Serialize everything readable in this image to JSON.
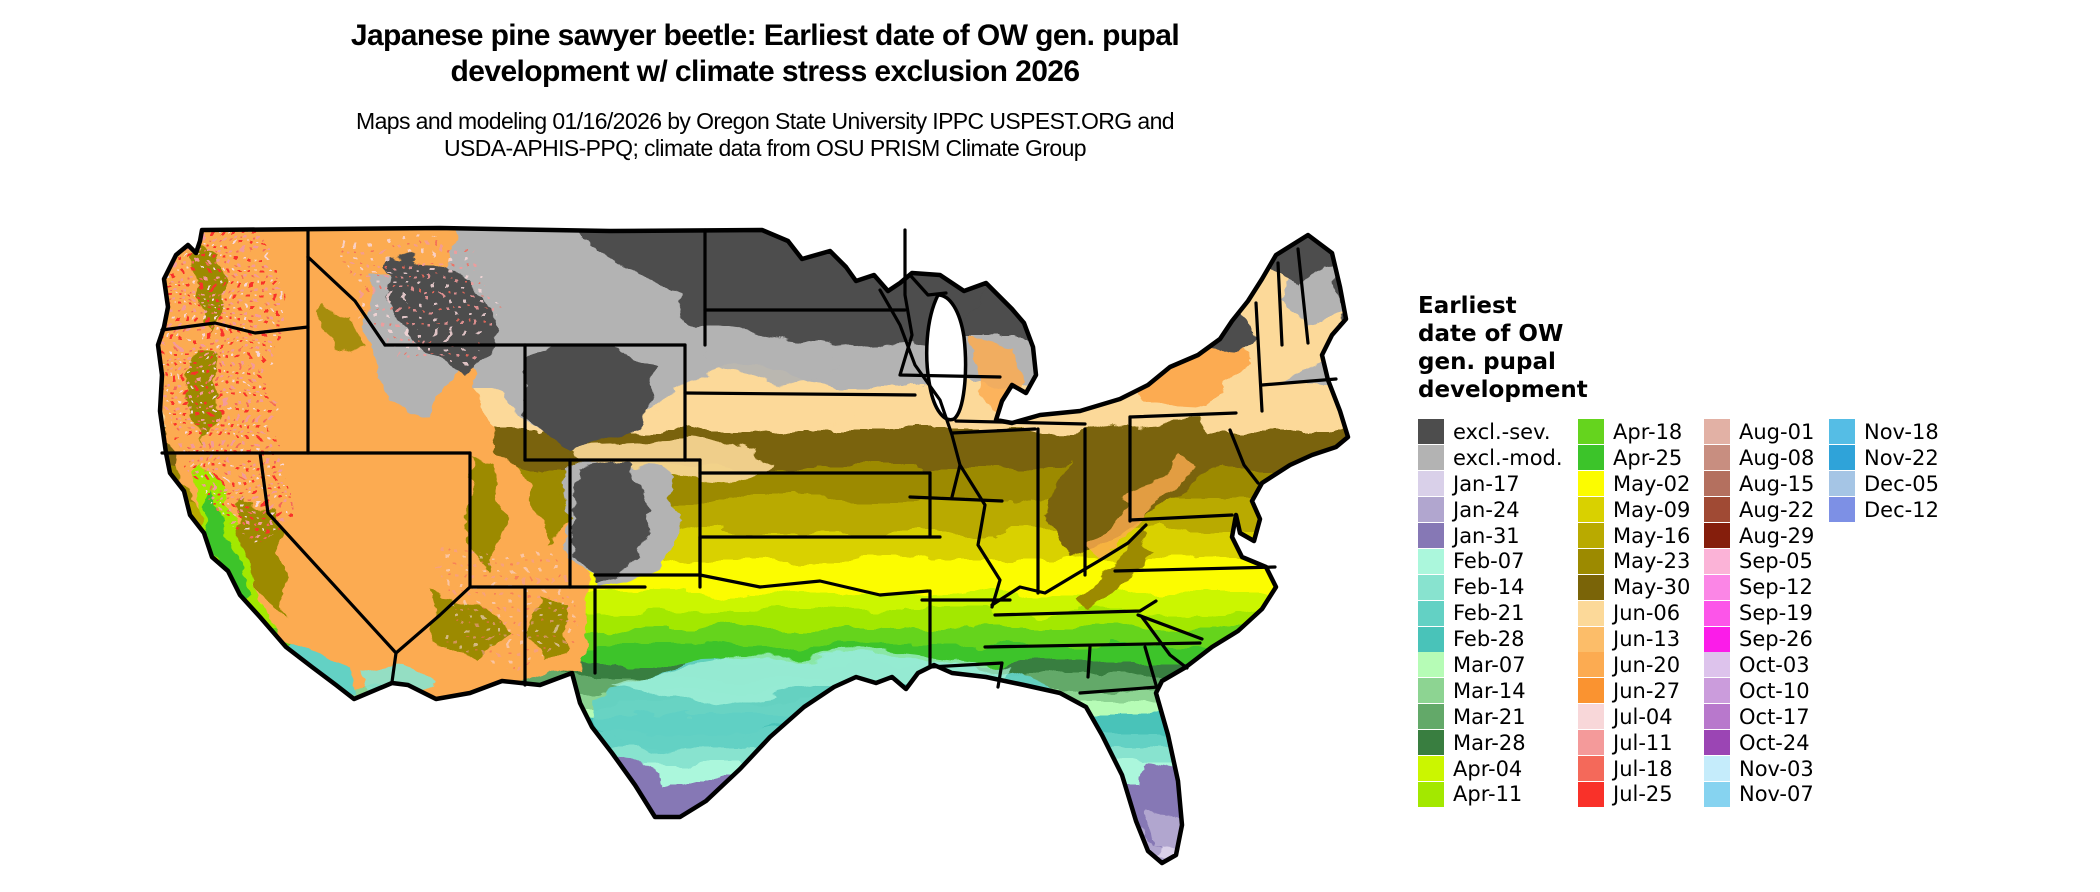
{
  "title": {
    "line1": "Japanese pine sawyer beetle: Earliest date of OW gen. pupal",
    "line2": "development w/ climate stress exclusion 2026"
  },
  "subtitle": {
    "line1": "Maps and modeling 01/16/2026 by Oregon State University IPPC USPEST.ORG and",
    "line2": "USDA-APHIS-PPQ; climate data from OSU PRISM Climate Group"
  },
  "legend": {
    "title_lines": [
      "Earliest",
      "date of OW",
      "gen. pupal",
      "development"
    ],
    "columns": [
      {
        "entries": [
          {
            "label": "excl.-sev.",
            "color": "#4d4d4d"
          },
          {
            "label": "excl.-mod.",
            "color": "#b3b3b3"
          },
          {
            "label": "Jan-17",
            "color": "#d9d0e9"
          },
          {
            "label": "Jan-24",
            "color": "#b1a6cf"
          },
          {
            "label": "Jan-31",
            "color": "#8678b5"
          },
          {
            "label": "Feb-07",
            "color": "#abf7dc"
          },
          {
            "label": "Feb-14",
            "color": "#88e3cf"
          },
          {
            "label": "Feb-21",
            "color": "#63d1c4"
          },
          {
            "label": "Feb-28",
            "color": "#49c3b9"
          },
          {
            "label": "Mar-07",
            "color": "#b6fcb6"
          },
          {
            "label": "Mar-14",
            "color": "#8dd492"
          },
          {
            "label": "Mar-21",
            "color": "#63a969"
          },
          {
            "label": "Mar-28",
            "color": "#397e40"
          },
          {
            "label": "Apr-04",
            "color": "#cbf600"
          },
          {
            "label": "Apr-11",
            "color": "#a3e800"
          }
        ]
      },
      {
        "entries": [
          {
            "label": "Apr-18",
            "color": "#65d41e"
          },
          {
            "label": "Apr-25",
            "color": "#3cc42a"
          },
          {
            "label": "May-02",
            "color": "#fcfc00"
          },
          {
            "label": "May-09",
            "color": "#d9d100"
          },
          {
            "label": "May-16",
            "color": "#b9aa00"
          },
          {
            "label": "May-23",
            "color": "#9c8a00"
          },
          {
            "label": "May-30",
            "color": "#7a6408"
          },
          {
            "label": "Jun-06",
            "color": "#fcd999"
          },
          {
            "label": "Jun-13",
            "color": "#fcbd69"
          },
          {
            "label": "Jun-20",
            "color": "#fcab51"
          },
          {
            "label": "Jun-27",
            "color": "#fa9330"
          },
          {
            "label": "Jul-04",
            "color": "#f8d7d9"
          },
          {
            "label": "Jul-11",
            "color": "#f49a9a"
          },
          {
            "label": "Jul-18",
            "color": "#f4695a"
          },
          {
            "label": "Jul-25",
            "color": "#f93129"
          }
        ]
      },
      {
        "entries": [
          {
            "label": "Aug-01",
            "color": "#e2b1a5"
          },
          {
            "label": "Aug-08",
            "color": "#c88e80"
          },
          {
            "label": "Aug-15",
            "color": "#b4705f"
          },
          {
            "label": "Aug-22",
            "color": "#a04a34"
          },
          {
            "label": "Aug-29",
            "color": "#851e0c"
          },
          {
            "label": "Sep-05",
            "color": "#fbb3d7"
          },
          {
            "label": "Sep-12",
            "color": "#fb86e6"
          },
          {
            "label": "Sep-19",
            "color": "#fc55e9"
          },
          {
            "label": "Sep-26",
            "color": "#fb1ce9"
          },
          {
            "label": "Oct-03",
            "color": "#ddc3ec"
          },
          {
            "label": "Oct-10",
            "color": "#cb9cdc"
          },
          {
            "label": "Oct-17",
            "color": "#b878cc"
          },
          {
            "label": "Oct-24",
            "color": "#9b45b4"
          },
          {
            "label": "Nov-03",
            "color": "#c5ecfb"
          },
          {
            "label": "Nov-07",
            "color": "#86d3f0"
          }
        ]
      },
      {
        "entries": [
          {
            "label": "Nov-18",
            "color": "#55bde5"
          },
          {
            "label": "Nov-22",
            "color": "#2fa3d9"
          },
          {
            "label": "Dec-05",
            "color": "#a5c5e5"
          },
          {
            "label": "Dec-12",
            "color": "#7d90e5"
          }
        ]
      }
    ]
  },
  "map": {
    "region": "Conterminous United States",
    "kind": "raster model output map with state boundaries"
  }
}
